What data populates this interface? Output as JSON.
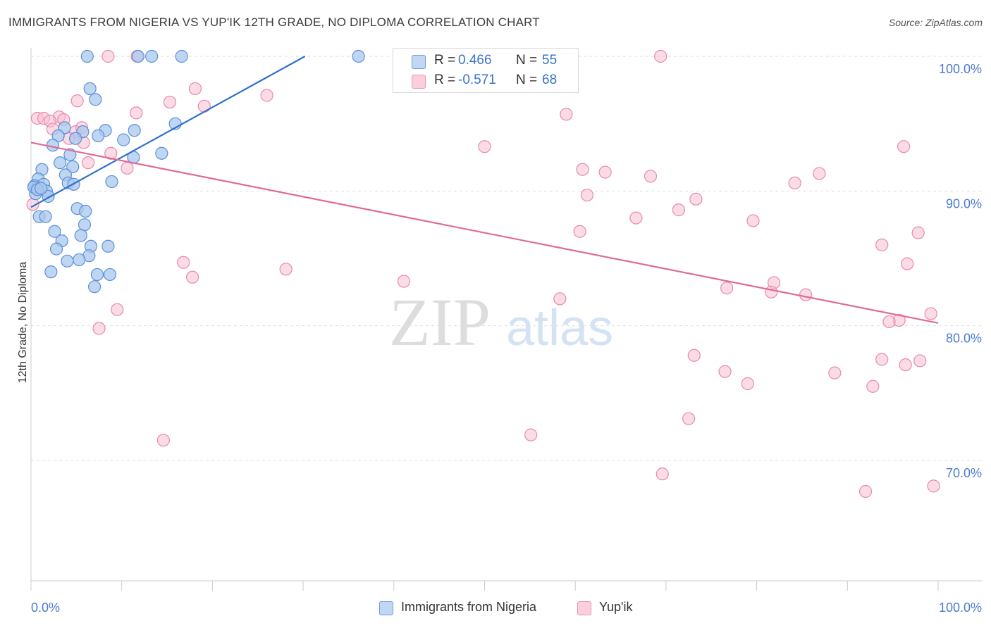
{
  "title": "IMMIGRANTS FROM NIGERIA VS YUP'IK 12TH GRADE, NO DIPLOMA CORRELATION CHART",
  "source": "Source: ZipAtlas.com",
  "watermark": {
    "zip": "ZIP",
    "atlas": "atlas"
  },
  "legend_top": {
    "rows": [
      {
        "r_label": "R =",
        "r_value": "0.466",
        "n_label": "N =",
        "n_value": "55"
      },
      {
        "r_label": "R =",
        "r_value": "-0.571",
        "n_label": "N =",
        "n_value": "68"
      }
    ]
  },
  "legend_bottom": {
    "items": [
      {
        "label": "Immigrants from Nigeria"
      },
      {
        "label": "Yup'ik"
      }
    ]
  },
  "colors": {
    "blue_fill": "#a9c8ef",
    "blue_stroke": "#5b8fd6",
    "blue_line": "#2e6fce",
    "pink_fill": "#f7c0d1",
    "pink_stroke": "#e88aa8",
    "pink_line": "#e06a94",
    "grid": "#dedede",
    "axis_label": "#4a7bd0"
  },
  "chart_data": {
    "type": "scatter",
    "title": "IMMIGRANTS FROM NIGERIA VS YUP'IK 12TH GRADE, NO DIPLOMA CORRELATION CHART",
    "xlabel": "",
    "ylabel": "12th Grade, No Diploma",
    "xlim": [
      0,
      100
    ],
    "ylim": [
      59.5,
      101
    ],
    "x_tick_labels": [
      "0.0%",
      "100.0%"
    ],
    "y_ticks": [
      {
        "value": 70,
        "label": "70.0%"
      },
      {
        "value": 80,
        "label": "80.0%"
      },
      {
        "value": 90,
        "label": "90.0%"
      },
      {
        "value": 100,
        "label": "100.0%"
      }
    ],
    "grid": true,
    "legend_position": "top-center",
    "series": [
      {
        "name": "Immigrants from Nigeria",
        "color": "#a9c8ef",
        "R": 0.466,
        "N": 55,
        "trend": {
          "x": [
            0,
            30.2
          ],
          "y": [
            88.8,
            100.0
          ]
        },
        "points": [
          [
            6.2,
            100
          ],
          [
            11.8,
            100
          ],
          [
            13.3,
            100
          ],
          [
            16.6,
            100
          ],
          [
            36.1,
            100
          ],
          [
            6.5,
            97.6
          ],
          [
            7.1,
            96.8
          ],
          [
            15.9,
            95.0
          ],
          [
            3.7,
            94.7
          ],
          [
            5.7,
            94.4
          ],
          [
            8.2,
            94.5
          ],
          [
            11.4,
            94.5
          ],
          [
            3.0,
            94.1
          ],
          [
            4.9,
            93.9
          ],
          [
            7.4,
            94.1
          ],
          [
            10.2,
            93.8
          ],
          [
            2.4,
            93.4
          ],
          [
            4.3,
            92.7
          ],
          [
            11.3,
            92.5
          ],
          [
            14.4,
            92.8
          ],
          [
            3.2,
            92.1
          ],
          [
            4.6,
            91.8
          ],
          [
            1.2,
            91.6
          ],
          [
            3.8,
            91.2
          ],
          [
            0.8,
            90.9
          ],
          [
            0.4,
            90.4
          ],
          [
            1.4,
            90.5
          ],
          [
            0.6,
            90.2
          ],
          [
            4.1,
            90.6
          ],
          [
            4.7,
            90.5
          ],
          [
            8.9,
            90.7
          ],
          [
            1.7,
            90.0
          ],
          [
            0.5,
            89.8
          ],
          [
            1.9,
            89.6
          ],
          [
            5.1,
            88.7
          ],
          [
            6.0,
            88.5
          ],
          [
            0.9,
            88.1
          ],
          [
            1.6,
            88.1
          ],
          [
            5.9,
            87.5
          ],
          [
            2.6,
            87.0
          ],
          [
            5.5,
            86.7
          ],
          [
            3.4,
            86.3
          ],
          [
            2.8,
            85.7
          ],
          [
            6.6,
            85.9
          ],
          [
            8.5,
            85.9
          ],
          [
            6.4,
            85.2
          ],
          [
            4.0,
            84.8
          ],
          [
            5.3,
            84.9
          ],
          [
            2.2,
            84.0
          ],
          [
            7.3,
            83.8
          ],
          [
            8.7,
            83.8
          ],
          [
            7.0,
            82.9
          ],
          [
            0.3,
            90.3
          ],
          [
            0.7,
            90.1
          ],
          [
            1.1,
            90.2
          ]
        ]
      },
      {
        "name": "Yup'ik",
        "color": "#f7c0d1",
        "R": -0.571,
        "N": 68,
        "trend": {
          "x": [
            0,
            100
          ],
          "y": [
            93.6,
            80.2
          ]
        },
        "points": [
          [
            8.5,
            100
          ],
          [
            11.7,
            100
          ],
          [
            69.4,
            100
          ],
          [
            18.1,
            97.6
          ],
          [
            26.0,
            97.1
          ],
          [
            5.1,
            96.7
          ],
          [
            15.3,
            96.6
          ],
          [
            19.1,
            96.3
          ],
          [
            0.7,
            95.4
          ],
          [
            1.4,
            95.4
          ],
          [
            3.1,
            95.5
          ],
          [
            11.6,
            95.8
          ],
          [
            2.1,
            95.2
          ],
          [
            3.6,
            95.3
          ],
          [
            59.0,
            95.7
          ],
          [
            2.4,
            94.6
          ],
          [
            4.9,
            94.4
          ],
          [
            5.6,
            94.7
          ],
          [
            4.2,
            93.9
          ],
          [
            5.8,
            93.6
          ],
          [
            8.8,
            92.8
          ],
          [
            50.0,
            93.3
          ],
          [
            96.2,
            93.3
          ],
          [
            6.3,
            92.1
          ],
          [
            10.6,
            91.7
          ],
          [
            60.8,
            91.6
          ],
          [
            63.3,
            91.4
          ],
          [
            68.3,
            91.1
          ],
          [
            86.9,
            91.3
          ],
          [
            84.2,
            90.6
          ],
          [
            61.3,
            89.7
          ],
          [
            73.3,
            89.4
          ],
          [
            71.4,
            88.6
          ],
          [
            66.7,
            88.0
          ],
          [
            79.6,
            87.8
          ],
          [
            60.5,
            87.0
          ],
          [
            97.8,
            86.9
          ],
          [
            93.8,
            86.0
          ],
          [
            16.8,
            84.7
          ],
          [
            96.6,
            84.6
          ],
          [
            28.1,
            84.2
          ],
          [
            17.8,
            83.6
          ],
          [
            41.1,
            83.3
          ],
          [
            81.9,
            83.2
          ],
          [
            76.7,
            82.8
          ],
          [
            81.6,
            82.5
          ],
          [
            85.4,
            82.3
          ],
          [
            58.3,
            82.0
          ],
          [
            9.5,
            81.2
          ],
          [
            99.2,
            80.9
          ],
          [
            95.7,
            80.4
          ],
          [
            94.6,
            80.3
          ],
          [
            7.5,
            79.8
          ],
          [
            73.1,
            77.8
          ],
          [
            93.8,
            77.5
          ],
          [
            98.0,
            77.4
          ],
          [
            96.4,
            77.1
          ],
          [
            76.5,
            76.6
          ],
          [
            88.6,
            76.5
          ],
          [
            79.0,
            75.7
          ],
          [
            92.8,
            75.5
          ],
          [
            72.5,
            73.1
          ],
          [
            14.6,
            71.5
          ],
          [
            55.1,
            71.9
          ],
          [
            69.6,
            69.0
          ],
          [
            92.0,
            67.7
          ],
          [
            99.5,
            68.1
          ],
          [
            0.2,
            89.0
          ]
        ]
      }
    ]
  }
}
